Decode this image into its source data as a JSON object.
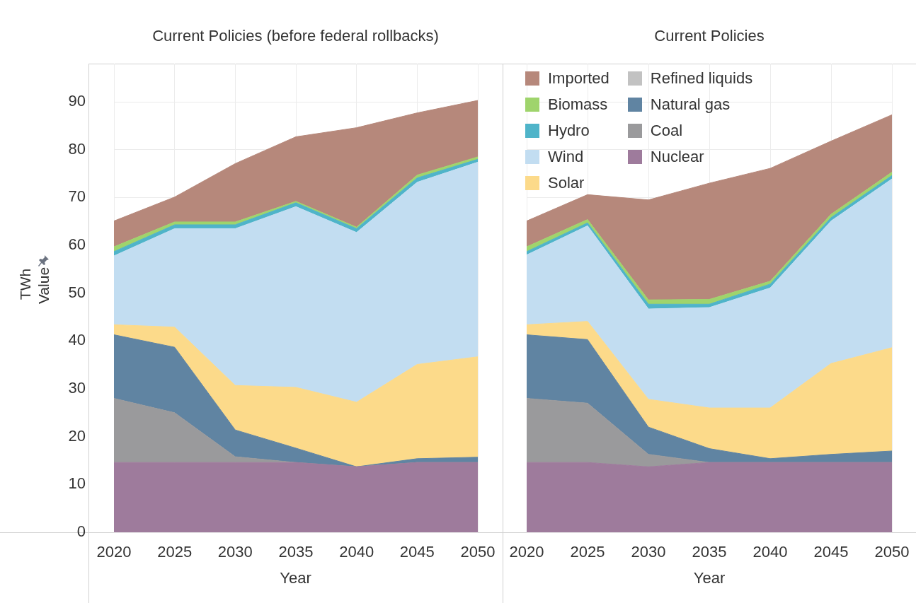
{
  "chart_data": [
    {
      "type": "area",
      "title": "Current Policies (before federal rollbacks)",
      "xlabel": "Year",
      "ylabel": "TWh",
      "annotations": [
        "Value"
      ],
      "categories": [
        "2020",
        "2025",
        "2030",
        "2035",
        "2040",
        "2045",
        "2050"
      ],
      "stacked": true,
      "ylim": [
        0,
        98
      ],
      "yticks": [
        0,
        10,
        20,
        30,
        40,
        50,
        60,
        70,
        80,
        90
      ],
      "grid": true,
      "legend": false,
      "series": [
        {
          "color": "#9e7b9c",
          "values": [
            14.6,
            14.6,
            14.6,
            14.6,
            13.7,
            14.6,
            14.6
          ]
        },
        {
          "color": "#9a9a9c",
          "values": [
            13.4,
            10.4,
            1.2,
            0,
            0,
            0,
            0
          ]
        },
        {
          "color": "#6084a2",
          "values": [
            13.3,
            13.7,
            5.6,
            3.0,
            0,
            0.8,
            1.1
          ]
        },
        {
          "color": "#fcda8a",
          "values": [
            2.1,
            4.2,
            9.3,
            12.7,
            13.5,
            19.7,
            21.0
          ]
        },
        {
          "color": "#c2ddf1",
          "values": [
            14.4,
            20.6,
            32.8,
            37.8,
            35.5,
            38.1,
            40.7
          ]
        },
        {
          "color": "#4fb4c9",
          "values": [
            0.9,
            0.8,
            0.8,
            0.8,
            0.8,
            0.9,
            0.6
          ]
        },
        {
          "color": "#9fd46c",
          "values": [
            1.0,
            0.6,
            0.6,
            0.3,
            0.3,
            0.6,
            0.5
          ]
        },
        {
          "color": "#b6887b",
          "values": [
            5.4,
            5.2,
            12.2,
            13.5,
            20.8,
            13.0,
            11.8
          ]
        }
      ]
    },
    {
      "type": "area",
      "title": "Current Policies",
      "xlabel": "Year",
      "categories": [
        "2020",
        "2025",
        "2030",
        "2035",
        "2040",
        "2045",
        "2050"
      ],
      "stacked": true,
      "ylim": [
        0,
        98
      ],
      "yticks": [
        0,
        10,
        20,
        30,
        40,
        50,
        60,
        70,
        80,
        90
      ],
      "grid": true,
      "legend": "top left",
      "tick_labels": "x",
      "series": [
        {
          "name": "Nuclear",
          "color": "#9e7b9c",
          "values": [
            14.6,
            14.6,
            13.7,
            14.6,
            14.6,
            14.6,
            14.6
          ]
        },
        {
          "name": "Coal",
          "color": "#9a9a9c",
          "values": [
            13.4,
            12.4,
            2.6,
            0,
            0,
            0,
            0
          ]
        },
        {
          "name": "Natural gas",
          "color": "#6084a2",
          "values": [
            13.3,
            13.3,
            5.7,
            2.9,
            0.8,
            1.7,
            2.4
          ]
        },
        {
          "name": "Refined liquids",
          "color": "#c2c2c2",
          "values": [
            null,
            null,
            null,
            null,
            null,
            null,
            null
          ]
        },
        {
          "name": "Solar",
          "color": "#fcda8a",
          "values": [
            2.1,
            3.8,
            5.8,
            8.5,
            10.6,
            19.0,
            21.6
          ]
        },
        {
          "name": "Wind",
          "color": "#c2ddf1",
          "values": [
            14.6,
            20.0,
            18.9,
            21.0,
            25.1,
            29.8,
            35.3
          ]
        },
        {
          "name": "Hydro",
          "color": "#4fb4c9",
          "values": [
            0.7,
            0.6,
            1.0,
            0.7,
            0.8,
            0.7,
            0.7
          ]
        },
        {
          "name": "Biomass",
          "color": "#9fd46c",
          "values": [
            1.0,
            0.7,
            0.9,
            1.0,
            0.6,
            0.7,
            0.7
          ]
        },
        {
          "name": "Imported",
          "color": "#b6887b",
          "values": [
            5.4,
            5.2,
            20.9,
            24.3,
            23.6,
            15.3,
            12.0
          ]
        }
      ]
    }
  ]
}
